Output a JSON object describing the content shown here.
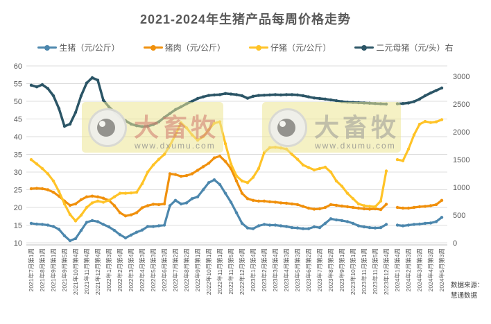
{
  "title": "2021-2024年生猪产品每周价格走势",
  "legend": {
    "items": [
      {
        "label": "生猪（元/公斤）",
        "color": "#4C87AD"
      },
      {
        "label": "猪肉（元/公斤）",
        "color": "#F0900C"
      },
      {
        "label": "仔猪（元/公斤）",
        "color": "#FFC327"
      },
      {
        "label": "二元母猪（元/头）右",
        "color": "#2B5566"
      }
    ]
  },
  "watermarks": [
    {
      "brand": "大畜牧",
      "url": "www.dxumu.com",
      "text_color": "rgba(206,118,108,0.55)"
    },
    {
      "brand": "大畜牧",
      "url": "www.dxumu.com",
      "text_color": "rgba(150,150,148,0.55)"
    }
  ],
  "source": {
    "line1": "数据来源：",
    "line2": "慧通数据"
  },
  "chart_data": {
    "type": "line",
    "title": "2021-2024年生猪产品每周价格走势",
    "grid": true,
    "legend_position": "top",
    "points_per_tick": 2,
    "x_tick_labels": [
      "2021年7月第1周",
      "2021年8月第1周",
      "2021年9月第1周",
      "2021年9月第5周",
      "2021年10月第4周",
      "2021年11月第4周",
      "2021年12月第4周",
      "2022年1月第3周",
      "2022年2月第4周",
      "2022年3月第4周",
      "2022年4月第3周",
      "2022年5月第3周",
      "2022年6月第3周",
      "2022年7月第2周",
      "2022年8月第2周",
      "2022年9月第1周",
      "2022年10月第1周",
      "2022年11月第1周",
      "2022年11月第5周",
      "2022年12月第4周",
      "2023年1月第4周",
      "2023年2月第4周",
      "2023年3月第4周",
      "2023年4月第3周",
      "2023年5月第3周",
      "2023年6月第2周",
      "2023年7月第2周",
      "2023年8月第2周",
      "2023年9月第1周",
      "2023年10月第1周",
      "2023年11月第1周",
      "2023年11月第5周",
      "2023年12月第4周",
      "2024年1月第4周",
      "2024年2月第3周",
      "2024年3月第3周",
      "2024年4月第3周",
      "2024年5月第3周"
    ],
    "left_axis": {
      "min": 10,
      "max": 60,
      "step": 5,
      "ticks": [
        10,
        15,
        20,
        25,
        30,
        35,
        40,
        45,
        50,
        55,
        60
      ]
    },
    "right_axis": {
      "min": 0,
      "max": 3000,
      "step": 500,
      "ticks": [
        0,
        500,
        1000,
        1500,
        2000,
        2500,
        3000
      ]
    },
    "series": [
      {
        "name": "生猪（元/公斤）",
        "slug": "live-pig",
        "axis": "left",
        "color": "#4C87AD",
        "values": [
          15.5,
          15.3,
          15.2,
          15.0,
          14.6,
          13.8,
          12.0,
          10.6,
          11.2,
          13.5,
          15.8,
          16.3,
          16.0,
          15.2,
          14.5,
          13.5,
          12.3,
          11.4,
          12.2,
          13.0,
          13.6,
          14.6,
          14.6,
          14.8,
          15.0,
          20.5,
          22.0,
          21.0,
          21.3,
          22.5,
          23.0,
          25.0,
          27.0,
          27.8,
          26.5,
          24.0,
          21.5,
          18.5,
          15.5,
          14.2,
          14.0,
          14.8,
          15.2,
          15.0,
          15.0,
          14.8,
          14.6,
          14.3,
          14.2,
          14.0,
          14.0,
          14.5,
          14.3,
          15.5,
          16.8,
          16.5,
          16.3,
          16.0,
          15.5,
          14.8,
          14.5,
          14.3,
          14.2,
          14.3,
          15.2,
          null,
          15.0,
          14.8,
          15.0,
          15.2,
          15.3,
          15.5,
          15.6,
          16.0,
          17.2
        ]
      },
      {
        "name": "猪肉（元/公斤）",
        "slug": "pork",
        "axis": "left",
        "color": "#F0900C",
        "values": [
          25.3,
          25.4,
          25.3,
          25.0,
          24.3,
          23.2,
          21.8,
          20.6,
          21.0,
          22.2,
          23.0,
          23.2,
          23.0,
          22.6,
          22.0,
          20.5,
          18.5,
          17.6,
          17.9,
          18.5,
          19.9,
          20.5,
          20.9,
          20.8,
          21.0,
          29.5,
          29.3,
          28.8,
          29.0,
          29.5,
          30.5,
          31.5,
          32.5,
          34.0,
          34.5,
          33.0,
          31.0,
          27.5,
          24.0,
          22.5,
          22.0,
          21.8,
          21.8,
          21.6,
          21.5,
          21.3,
          21.2,
          21.0,
          20.8,
          20.3,
          19.8,
          19.5,
          19.6,
          20.0,
          20.8,
          20.6,
          20.4,
          20.2,
          20.0,
          19.8,
          19.6,
          19.5,
          19.6,
          19.4,
          20.9,
          null,
          20.0,
          19.8,
          19.8,
          20.0,
          20.2,
          20.3,
          20.5,
          20.8,
          22.0
        ]
      },
      {
        "name": "仔猪（元/公斤）",
        "slug": "piglet",
        "axis": "left",
        "color": "#FFC327",
        "values": [
          33.5,
          32.3,
          31.0,
          29.5,
          27.5,
          24.5,
          21.0,
          18.0,
          16.2,
          17.8,
          20.0,
          21.3,
          21.8,
          21.5,
          22.0,
          23.0,
          24.0,
          24.0,
          24.1,
          24.3,
          26.7,
          30.0,
          32.0,
          33.6,
          35.0,
          37.5,
          40.5,
          43.9,
          42.5,
          40.5,
          39.0,
          40.0,
          42.0,
          43.8,
          44.2,
          38.0,
          32.3,
          28.9,
          27.5,
          27.0,
          28.5,
          31.0,
          35.5,
          36.9,
          37.0,
          36.8,
          36.5,
          35.0,
          33.6,
          32.0,
          31.3,
          30.6,
          31.0,
          31.4,
          30.0,
          27.5,
          26.0,
          24.0,
          22.5,
          21.0,
          20.5,
          20.3,
          20.2,
          21.8,
          30.3,
          null,
          33.5,
          33.2,
          36.5,
          40.5,
          43.5,
          44.3,
          44.0,
          44.2,
          44.8
        ]
      },
      {
        "name": "二元母猪（元/头）右",
        "slug": "binary-sow",
        "axis": "right",
        "color": "#2B5566",
        "values": [
          2840,
          2810,
          2850,
          2780,
          2650,
          2420,
          2100,
          2140,
          2350,
          2650,
          2880,
          2975,
          2930,
          2570,
          2450,
          2360,
          2270,
          2200,
          2140,
          2110,
          2095,
          2100,
          2130,
          2180,
          2260,
          2330,
          2400,
          2450,
          2505,
          2550,
          2600,
          2630,
          2655,
          2665,
          2670,
          2690,
          2680,
          2670,
          2650,
          2605,
          2640,
          2655,
          2660,
          2665,
          2670,
          2665,
          2670,
          2670,
          2665,
          2650,
          2630,
          2610,
          2600,
          2590,
          2575,
          2560,
          2545,
          2535,
          2530,
          2525,
          2520,
          2515,
          2510,
          2505,
          2500,
          null,
          2505,
          2510,
          2520,
          2545,
          2590,
          2650,
          2700,
          2745,
          2790
        ]
      }
    ]
  }
}
